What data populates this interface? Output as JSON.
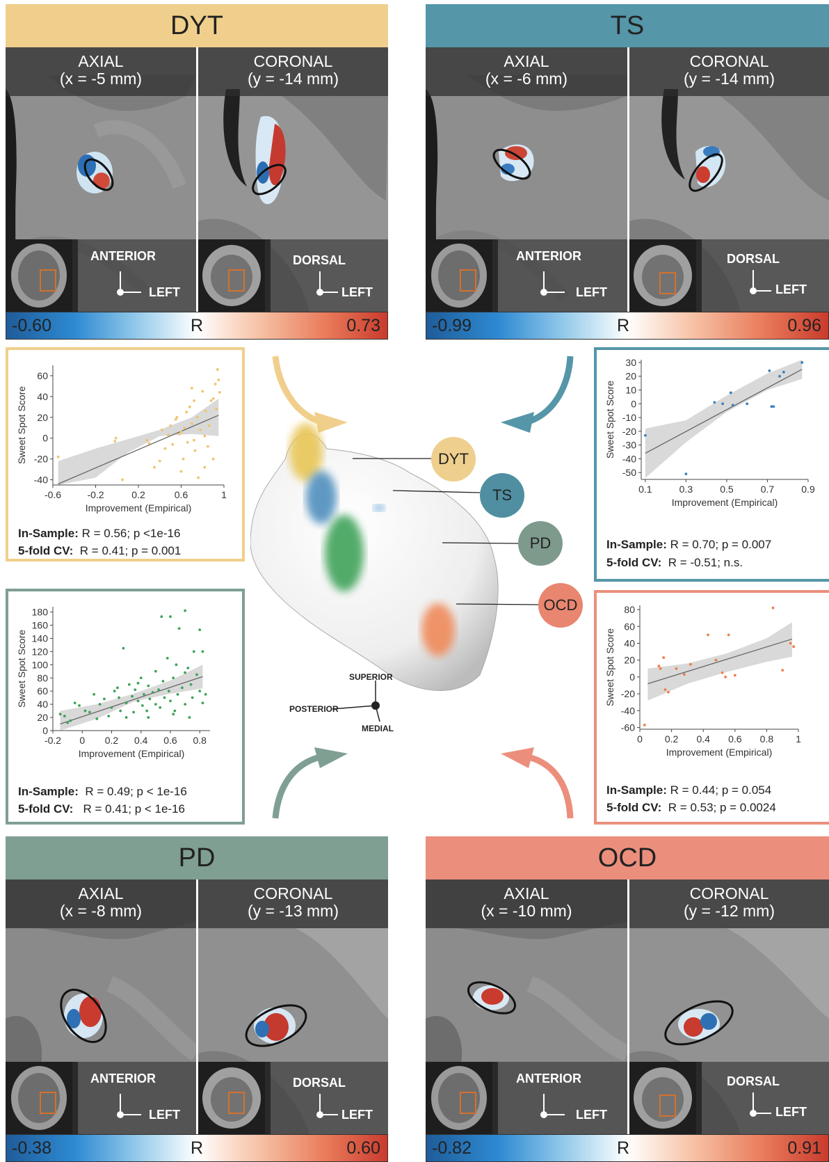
{
  "colors": {
    "dyt": "#f0cf8c",
    "ts": "#5596a8",
    "pd": "#7f9f92",
    "ocd": "#eb8f7c",
    "dyt_bubble": "#eecf8d",
    "ts_bubble": "#4f8fa1",
    "pd_bubble": "#7d9a8d",
    "ocd_bubble": "#e98670"
  },
  "panels": [
    {
      "id": "dyt",
      "title": "DYT",
      "axial_label": "AXIAL",
      "axial_coord": "(x = -5 mm)",
      "coronal_label": "CORONAL",
      "coronal_coord": "(y = -14 mm)",
      "axial_orient": "ANTERIOR",
      "coronal_orient": "DORSAL",
      "left_word": "LEFT",
      "cb_min": "-0.60",
      "cb_mid": "R",
      "cb_max": "0.73"
    },
    {
      "id": "ts",
      "title": "TS",
      "axial_label": "AXIAL",
      "axial_coord": "(x = -6 mm)",
      "coronal_label": "CORONAL",
      "coronal_coord": "(y = -14 mm)",
      "axial_orient": "ANTERIOR",
      "coronal_orient": "DORSAL",
      "left_word": "LEFT",
      "cb_min": "-0.99",
      "cb_mid": "R",
      "cb_max": "0.96"
    },
    {
      "id": "pd",
      "title": "PD",
      "axial_label": "AXIAL",
      "axial_coord": "(x = -8 mm)",
      "coronal_label": "CORONAL",
      "coronal_coord": "(y = -13 mm)",
      "axial_orient": "ANTERIOR",
      "coronal_orient": "DORSAL",
      "left_word": "LEFT",
      "cb_min": "-0.38",
      "cb_mid": "R",
      "cb_max": "0.60"
    },
    {
      "id": "ocd",
      "title": "OCD",
      "axial_label": "AXIAL",
      "axial_coord": "(x = -10 mm)",
      "coronal_label": "CORONAL",
      "coronal_coord": "(y = -12 mm)",
      "axial_orient": "ANTERIOR",
      "coronal_orient": "DORSAL",
      "left_word": "LEFT",
      "cb_min": "-0.82",
      "cb_mid": "R",
      "cb_max": "0.91"
    }
  ],
  "stats": {
    "dyt": {
      "in_label": "In-Sample:",
      "in_text": " R = 0.56; p <1e-16",
      "cv_label": "5-fold CV:",
      "cv_text": "  R = 0.41; p = 0.001"
    },
    "ts": {
      "in_label": "In-Sample:",
      "in_text": " R = 0.70; p = 0.007",
      "cv_label": "5-fold CV:",
      "cv_text": "  R = -0.51; n.s."
    },
    "pd": {
      "in_label": "In-Sample:",
      "in_text": "  R = 0.49; p < 1e-16",
      "cv_label": "5-fold CV:",
      "cv_text": "   R = 0.41; p < 1e-16"
    },
    "ocd": {
      "in_label": "In-Sample:",
      "in_text": " R = 0.44; p = 0.054",
      "cv_label": "5-fold CV:",
      "cv_text": "  R = 0.53; p = 0.0024"
    }
  },
  "center": {
    "bubbles": [
      "DYT",
      "TS",
      "PD",
      "OCD"
    ],
    "orientation": {
      "superior": "SUPERIOR",
      "posterior": "POSTERIOR",
      "medial": "MEDIAL"
    }
  },
  "chart_data": [
    {
      "type": "scatter",
      "id": "dyt",
      "xlabel": "Improvement (Empirical)",
      "ylabel": "Sweet Spot Score",
      "xlim": [
        -0.6,
        1.0
      ],
      "ylim": [
        -45,
        70
      ],
      "xticks": [
        -0.6,
        -0.2,
        0.2,
        0.6,
        1
      ],
      "xtick_labels": [
        "-0.6",
        "-0.2",
        "0.2",
        "0.6",
        "1"
      ],
      "yticks": [
        -40,
        -20,
        0,
        20,
        40,
        60
      ],
      "ytick_labels": [
        "-40",
        "-20",
        "0",
        "20",
        "40",
        "60"
      ],
      "line": [
        [
          -0.55,
          -44
        ],
        [
          0.95,
          22
        ]
      ],
      "band": {
        "x": [
          -0.55,
          -0.2,
          0.1,
          0.4,
          0.7,
          0.95
        ],
        "lo": [
          -68,
          -38,
          -14,
          2,
          4,
          2
        ],
        "hi": [
          -22,
          -10,
          -1,
          8,
          20,
          38
        ]
      },
      "points": [
        [
          -0.55,
          -18
        ],
        [
          -0.02,
          -3
        ],
        [
          -0.01,
          0
        ],
        [
          0.05,
          -40
        ],
        [
          0.28,
          -2
        ],
        [
          0.3,
          -5
        ],
        [
          0.35,
          -28
        ],
        [
          0.4,
          -22
        ],
        [
          0.42,
          8
        ],
        [
          0.45,
          -10
        ],
        [
          0.48,
          3
        ],
        [
          0.5,
          12
        ],
        [
          0.52,
          -6
        ],
        [
          0.55,
          18
        ],
        [
          0.56,
          20
        ],
        [
          0.58,
          4
        ],
        [
          0.6,
          -32
        ],
        [
          0.62,
          -20
        ],
        [
          0.63,
          10
        ],
        [
          0.65,
          25
        ],
        [
          0.66,
          -4
        ],
        [
          0.68,
          30
        ],
        [
          0.7,
          14
        ],
        [
          0.7,
          48
        ],
        [
          0.72,
          36
        ],
        [
          0.73,
          -12
        ],
        [
          0.75,
          20
        ],
        [
          0.76,
          -38
        ],
        [
          0.78,
          8
        ],
        [
          0.8,
          45
        ],
        [
          0.82,
          2
        ],
        [
          0.83,
          26
        ],
        [
          0.85,
          -8
        ],
        [
          0.86,
          12
        ],
        [
          0.88,
          36
        ],
        [
          0.9,
          38
        ],
        [
          0.9,
          -20
        ],
        [
          0.92,
          52
        ],
        [
          0.93,
          28
        ],
        [
          0.94,
          66
        ],
        [
          0.95,
          56
        ],
        [
          0.96,
          44
        ],
        [
          0.72,
          -2
        ],
        [
          0.6,
          6
        ],
        [
          0.82,
          -28
        ]
      ]
    },
    {
      "type": "scatter",
      "id": "ts",
      "xlabel": "Improvement (Empirical)",
      "ylabel": "Sweet Spot Score",
      "xlim": [
        0.08,
        0.9
      ],
      "ylim": [
        -55,
        32
      ],
      "xticks": [
        0.1,
        0.3,
        0.5,
        0.7,
        0.9
      ],
      "xtick_labels": [
        "0.1",
        "0.3",
        "0.5",
        "0.7",
        "0.9"
      ],
      "yticks": [
        -50,
        -40,
        -30,
        -20,
        -10,
        0,
        10,
        20,
        30
      ],
      "ytick_labels": [
        "-50",
        "-40",
        "-30",
        "-20",
        "-10",
        "0",
        "10",
        "20",
        "30"
      ],
      "line": [
        [
          0.1,
          -36
        ],
        [
          0.87,
          25
        ]
      ],
      "band": {
        "x": [
          0.1,
          0.3,
          0.5,
          0.7,
          0.87
        ],
        "lo": [
          -54,
          -28,
          -6,
          10,
          18
        ],
        "hi": [
          -18,
          -12,
          6,
          22,
          33
        ]
      },
      "points": [
        [
          0.1,
          -23
        ],
        [
          0.3,
          -51
        ],
        [
          0.44,
          1
        ],
        [
          0.48,
          0
        ],
        [
          0.52,
          8
        ],
        [
          0.53,
          -1
        ],
        [
          0.6,
          0
        ],
        [
          0.71,
          24
        ],
        [
          0.72,
          -2
        ],
        [
          0.73,
          -2
        ],
        [
          0.76,
          20
        ],
        [
          0.78,
          23
        ],
        [
          0.87,
          30
        ]
      ]
    },
    {
      "type": "scatter",
      "id": "pd",
      "xlabel": "Improvement (Empirical)",
      "ylabel": "Sweet Spot Score",
      "xlim": [
        -0.2,
        0.87
      ],
      "ylim": [
        0,
        188
      ],
      "xticks": [
        -0.2,
        0,
        0.2,
        0.4,
        0.6,
        0.8
      ],
      "xtick_labels": [
        "-0.2",
        "0",
        "0.2",
        "0.4",
        "0.6",
        "0.8"
      ],
      "yticks": [
        0,
        20,
        40,
        60,
        80,
        100,
        120,
        140,
        160,
        180
      ],
      "ytick_labels": [
        "0",
        "20",
        "40",
        "60",
        "80",
        "100",
        "120",
        "140",
        "160",
        "180"
      ],
      "line": [
        [
          -0.15,
          10
        ],
        [
          0.82,
          82
        ]
      ],
      "band": {
        "x": [
          -0.15,
          0.1,
          0.35,
          0.6,
          0.82
        ],
        "lo": [
          -10,
          18,
          44,
          56,
          64
        ],
        "hi": [
          30,
          40,
          56,
          76,
          100
        ]
      },
      "points": [
        [
          -0.15,
          25
        ],
        [
          -0.12,
          22
        ],
        [
          -0.1,
          12
        ],
        [
          -0.08,
          15
        ],
        [
          -0.05,
          42
        ],
        [
          -0.02,
          38
        ],
        [
          0.02,
          30
        ],
        [
          0.05,
          28
        ],
        [
          0.08,
          55
        ],
        [
          0.1,
          18
        ],
        [
          0.12,
          40
        ],
        [
          0.15,
          48
        ],
        [
          0.18,
          22
        ],
        [
          0.2,
          35
        ],
        [
          0.22,
          60
        ],
        [
          0.24,
          65
        ],
        [
          0.26,
          30
        ],
        [
          0.28,
          125
        ],
        [
          0.3,
          42
        ],
        [
          0.32,
          70
        ],
        [
          0.34,
          52
        ],
        [
          0.35,
          28
        ],
        [
          0.36,
          62
        ],
        [
          0.38,
          45
        ],
        [
          0.4,
          80
        ],
        [
          0.41,
          38
        ],
        [
          0.42,
          55
        ],
        [
          0.44,
          30
        ],
        [
          0.45,
          68
        ],
        [
          0.46,
          48
        ],
        [
          0.48,
          58
        ],
        [
          0.5,
          40
        ],
        [
          0.5,
          90
        ],
        [
          0.52,
          62
        ],
        [
          0.53,
          35
        ],
        [
          0.54,
          173
        ],
        [
          0.55,
          75
        ],
        [
          0.56,
          50
        ],
        [
          0.58,
          110
        ],
        [
          0.59,
          60
        ],
        [
          0.6,
          173
        ],
        [
          0.6,
          45
        ],
        [
          0.62,
          80
        ],
        [
          0.63,
          30
        ],
        [
          0.64,
          100
        ],
        [
          0.65,
          55
        ],
        [
          0.66,
          155
        ],
        [
          0.68,
          65
        ],
        [
          0.7,
          182
        ],
        [
          0.7,
          40
        ],
        [
          0.72,
          95
        ],
        [
          0.73,
          20
        ],
        [
          0.74,
          70
        ],
        [
          0.75,
          50
        ],
        [
          0.76,
          120
        ],
        [
          0.78,
          85
        ],
        [
          0.8,
          153
        ],
        [
          0.8,
          60
        ],
        [
          0.82,
          120
        ],
        [
          0.82,
          42
        ],
        [
          0.84,
          55
        ],
        [
          0.3,
          20
        ],
        [
          0.25,
          50
        ],
        [
          0.45,
          20
        ],
        [
          0.38,
          72
        ],
        [
          0.62,
          25
        ],
        [
          0.7,
          88
        ]
      ]
    },
    {
      "type": "scatter",
      "id": "ocd",
      "xlabel": "Improvement (Empirical)",
      "ylabel": "Sweet Spot Score",
      "xlim": [
        0,
        1
      ],
      "ylim": [
        -62,
        85
      ],
      "xticks": [
        0,
        0.2,
        0.4,
        0.6,
        0.8,
        1
      ],
      "xtick_labels": [
        "0",
        "0.2",
        "0.4",
        "0.6",
        "0.8",
        "1"
      ],
      "yticks": [
        -60,
        -40,
        -20,
        0,
        20,
        40,
        60,
        80
      ],
      "ytick_labels": [
        "-60",
        "-40",
        "-20",
        "0",
        "20",
        "40",
        "60",
        "80"
      ],
      "line": [
        [
          0.05,
          -8
        ],
        [
          0.96,
          45
        ]
      ],
      "band": {
        "x": [
          0.05,
          0.3,
          0.55,
          0.8,
          0.96
        ],
        "lo": [
          -28,
          -8,
          6,
          18,
          24
        ],
        "hi": [
          10,
          16,
          28,
          46,
          65
        ]
      },
      "points": [
        [
          0.03,
          -57
        ],
        [
          0.12,
          13
        ],
        [
          0.13,
          10
        ],
        [
          0.15,
          23
        ],
        [
          0.16,
          -15
        ],
        [
          0.18,
          -18
        ],
        [
          0.23,
          10
        ],
        [
          0.28,
          3
        ],
        [
          0.32,
          15
        ],
        [
          0.43,
          50
        ],
        [
          0.48,
          20
        ],
        [
          0.52,
          5
        ],
        [
          0.54,
          0
        ],
        [
          0.56,
          50
        ],
        [
          0.6,
          2
        ],
        [
          0.84,
          82
        ],
        [
          0.9,
          8
        ],
        [
          0.95,
          40
        ],
        [
          0.97,
          36
        ]
      ]
    }
  ]
}
